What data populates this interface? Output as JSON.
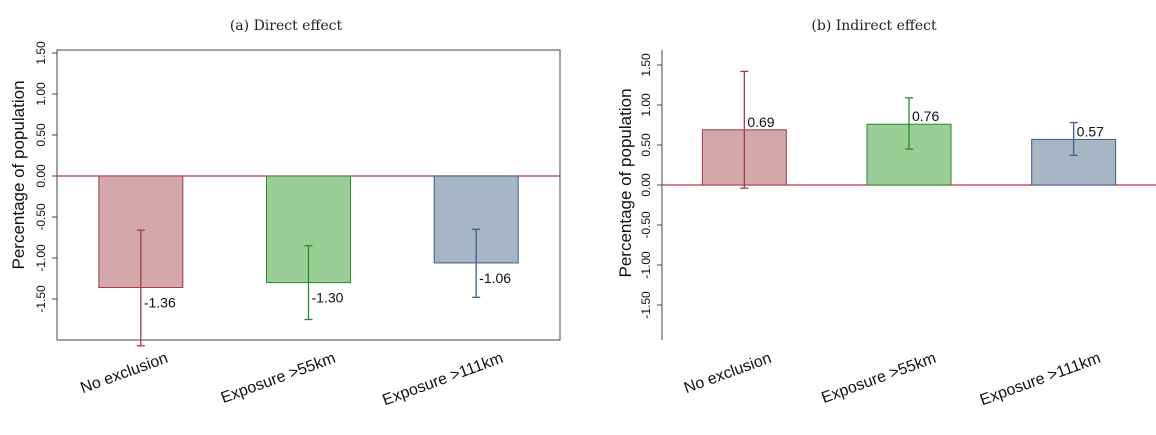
{
  "chart_data": [
    {
      "type": "bar",
      "title": "(a) Direct effect",
      "ylabel": "Percentage of population",
      "categories": [
        "No exclusion",
        "Exposure >55km",
        "Exposure >111km"
      ],
      "values": [
        -1.36,
        -1.3,
        -1.06
      ],
      "value_labels": [
        "-1.36",
        "-1.30",
        "-1.06"
      ],
      "ci_low": [
        -2.07,
        -1.75,
        -1.48
      ],
      "ci_high": [
        -0.66,
        -0.85,
        -0.65
      ],
      "ylim": [
        -2.1,
        1.6
      ],
      "yticks": [
        1.5,
        1.0,
        0.5,
        0.0,
        -0.5,
        -1.0,
        -1.5
      ],
      "ytick_labels": [
        "1.50",
        "1.00",
        "0.50",
        "0.00",
        "-0.50",
        "-1.00",
        "-1.50"
      ],
      "reference_line": 0,
      "grid": false,
      "colors": {
        "fills": [
          "#d2a8ab",
          "#9bce96",
          "#a7b6c5"
        ],
        "strokes": [
          "#a33a48",
          "#2a8a2a",
          "#3a5f86"
        ],
        "reference": "#c0304a"
      }
    },
    {
      "type": "bar",
      "title": "(b) Indirect effect",
      "ylabel": "Percentage of population",
      "categories": [
        "No exclusion",
        "Exposure >55km",
        "Exposure >111km"
      ],
      "values": [
        0.69,
        0.76,
        0.57
      ],
      "value_labels": [
        "0.69",
        "0.76",
        "0.57"
      ],
      "ci_low": [
        -0.04,
        0.45,
        0.37
      ],
      "ci_high": [
        1.42,
        1.09,
        0.78
      ],
      "ylim": [
        -2.1,
        1.6
      ],
      "yticks": [
        1.5,
        1.0,
        0.5,
        0.0,
        -0.5,
        -1.0,
        -1.5
      ],
      "ytick_labels": [
        "1.50",
        "1.00",
        "0.50",
        "0.00",
        "-0.50",
        "-1.00",
        "-1.50"
      ],
      "reference_line": 0,
      "grid": false,
      "colors": {
        "fills": [
          "#d2a8ab",
          "#9bce96",
          "#a7b6c5"
        ],
        "strokes": [
          "#a33a48",
          "#2a8a2a",
          "#3a5f86"
        ],
        "reference": "#c0304a"
      }
    }
  ]
}
